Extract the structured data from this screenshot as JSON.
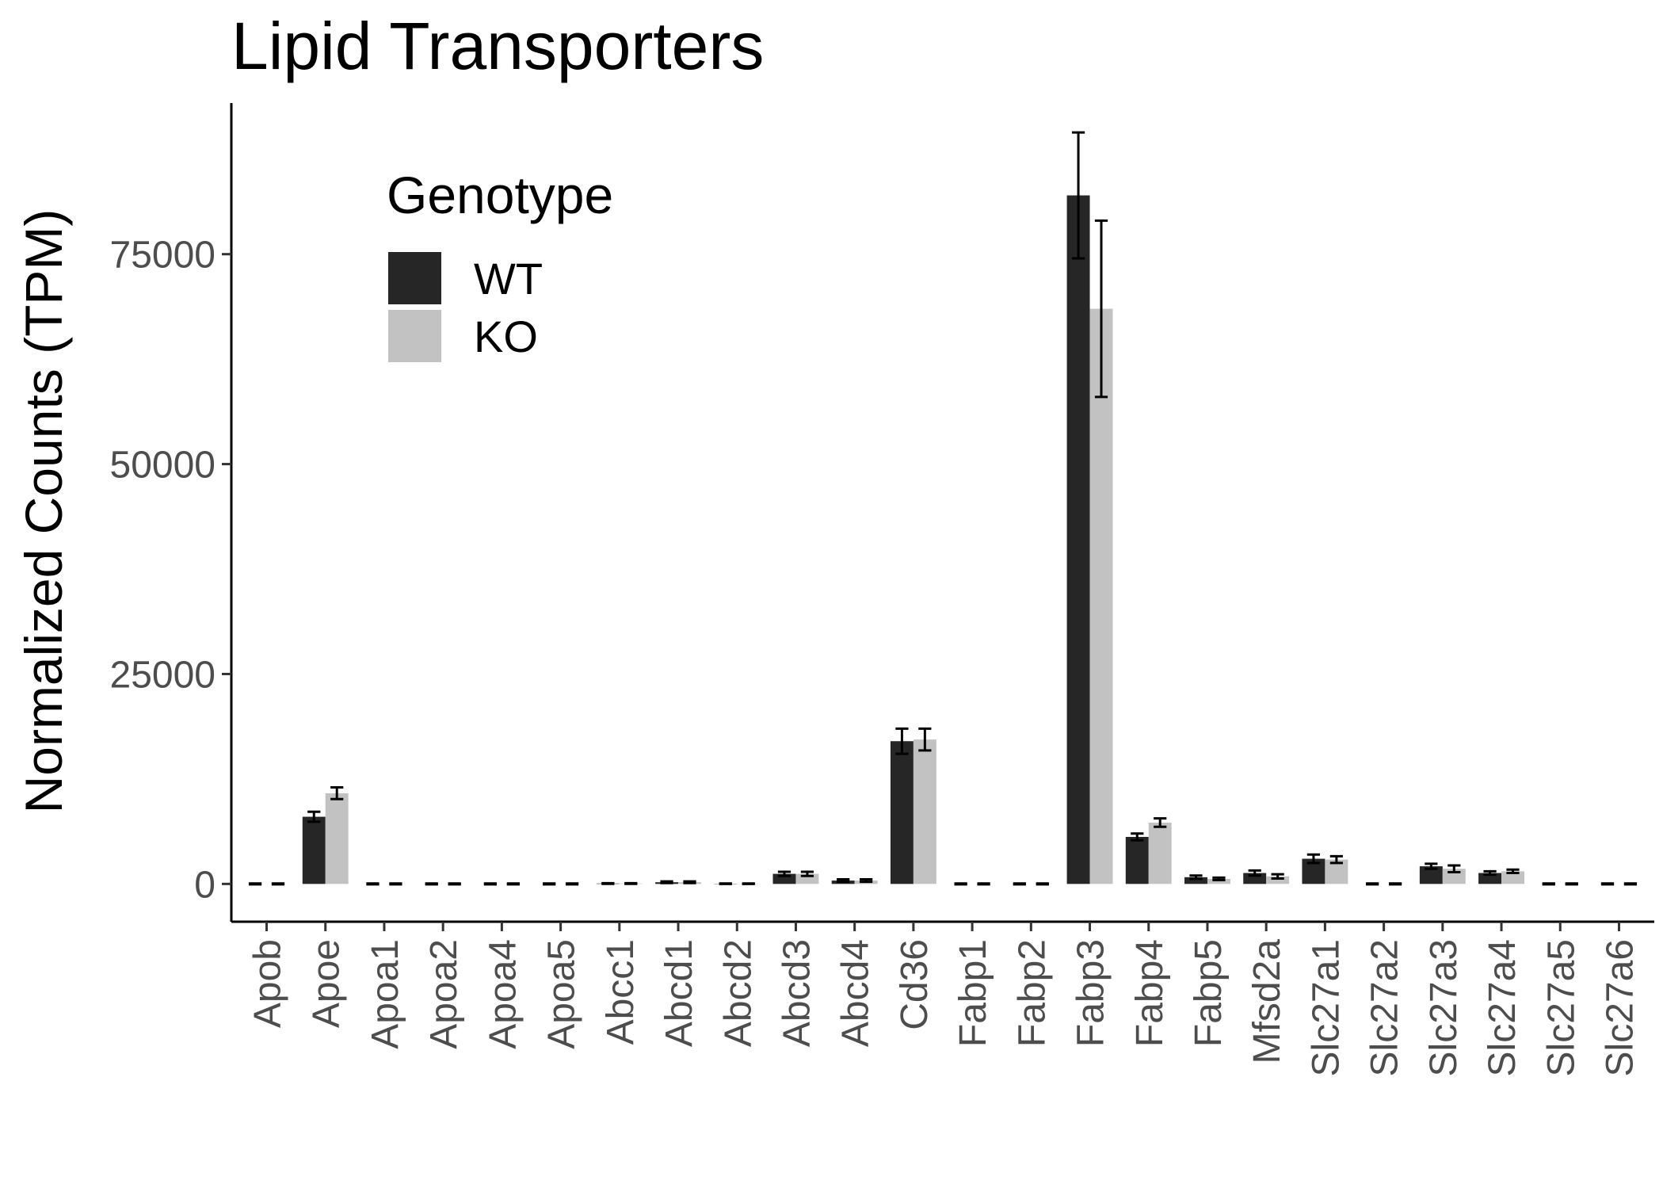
{
  "chart_data": {
    "type": "bar",
    "title": "Lipid Transporters",
    "xlabel": "",
    "ylabel": "Normalized Counts (TPM)",
    "ylim": [
      -4500,
      93000
    ],
    "yticks": [
      0,
      25000,
      50000,
      75000
    ],
    "grid": false,
    "legend": {
      "title": "Genotype",
      "position": "top-left"
    },
    "categories": [
      "Apob",
      "Apoe",
      "Apoa1",
      "Apoa2",
      "Apoa4",
      "Apoa5",
      "Abcc1",
      "Abcd1",
      "Abcd2",
      "Abcd3",
      "Abcd4",
      "Cd36",
      "Fabp1",
      "Fabp2",
      "Fabp3",
      "Fabp4",
      "Fabp5",
      "Mfsd2a",
      "Slc27a1",
      "Slc27a2",
      "Slc27a3",
      "Slc27a4",
      "Slc27a5",
      "Slc27a6"
    ],
    "series": [
      {
        "name": "WT",
        "color": "#262626",
        "values": [
          0,
          8000,
          0,
          0,
          0,
          0,
          50,
          200,
          30,
          1200,
          400,
          17000,
          0,
          0,
          82000,
          5600,
          800,
          1300,
          3000,
          0,
          2100,
          1300,
          0,
          0
        ],
        "errors": [
          50,
          600,
          50,
          50,
          50,
          50,
          40,
          100,
          30,
          250,
          150,
          1500,
          50,
          50,
          7500,
          400,
          200,
          300,
          500,
          50,
          300,
          200,
          50,
          50
        ]
      },
      {
        "name": "KO",
        "color": "#c2c2c2",
        "values": [
          0,
          10800,
          0,
          0,
          0,
          0,
          50,
          200,
          30,
          1200,
          400,
          17200,
          0,
          0,
          68500,
          7300,
          600,
          900,
          2900,
          0,
          1800,
          1500,
          0,
          0
        ],
        "errors": [
          50,
          700,
          50,
          50,
          50,
          50,
          40,
          100,
          30,
          250,
          150,
          1300,
          50,
          50,
          10500,
          500,
          150,
          250,
          400,
          50,
          400,
          200,
          50,
          50
        ]
      }
    ]
  }
}
